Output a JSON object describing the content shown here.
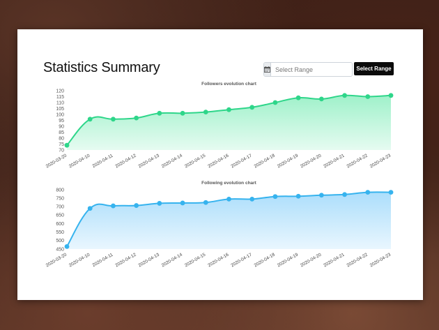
{
  "header": {
    "title": "Statistics Summary",
    "range_placeholder": "Select Range",
    "range_icon": "calendar-icon",
    "select_button_label": "Select Range"
  },
  "colors": {
    "followers_line": "#2ed68a",
    "followers_fill": "#9af0c7",
    "following_line": "#36b3ee",
    "following_fill": "#a7dcfb",
    "button_bg": "#0b0b0b"
  },
  "chart_data": [
    {
      "type": "area",
      "title": "Followers evolution chart",
      "categories": [
        "2020-03-20",
        "2020-04-10",
        "2020-04-11",
        "2020-04-12",
        "2020-04-13",
        "2020-04-14",
        "2020-04-15",
        "2020-04-16",
        "2020-04-17",
        "2020-04-18",
        "2020-04-19",
        "2020-04-20",
        "2020-04-21",
        "2020-04-22",
        "2020-04-23"
      ],
      "values": [
        74,
        96,
        96,
        97,
        101,
        101,
        102,
        104,
        106,
        110,
        114,
        113,
        116,
        115,
        116
      ],
      "ylim": [
        70,
        120
      ],
      "yticks": [
        70,
        75,
        80,
        85,
        90,
        95,
        100,
        105,
        110,
        115,
        120
      ],
      "xlabel": "",
      "ylabel": "",
      "legend": "none"
    },
    {
      "type": "area",
      "title": "Following evolution chart",
      "categories": [
        "2020-03-20",
        "2020-04-10",
        "2020-04-11",
        "2020-04-12",
        "2020-04-13",
        "2020-04-14",
        "2020-04-15",
        "2020-04-16",
        "2020-04-17",
        "2020-04-18",
        "2020-04-19",
        "2020-04-20",
        "2020-04-21",
        "2020-04-22",
        "2020-04-23"
      ],
      "values": [
        465,
        690,
        705,
        707,
        720,
        722,
        725,
        745,
        745,
        760,
        762,
        768,
        772,
        785,
        785
      ],
      "ylim": [
        450,
        800
      ],
      "yticks": [
        450,
        500,
        550,
        600,
        650,
        700,
        750,
        800
      ],
      "xlabel": "",
      "ylabel": "",
      "legend": "none"
    }
  ]
}
